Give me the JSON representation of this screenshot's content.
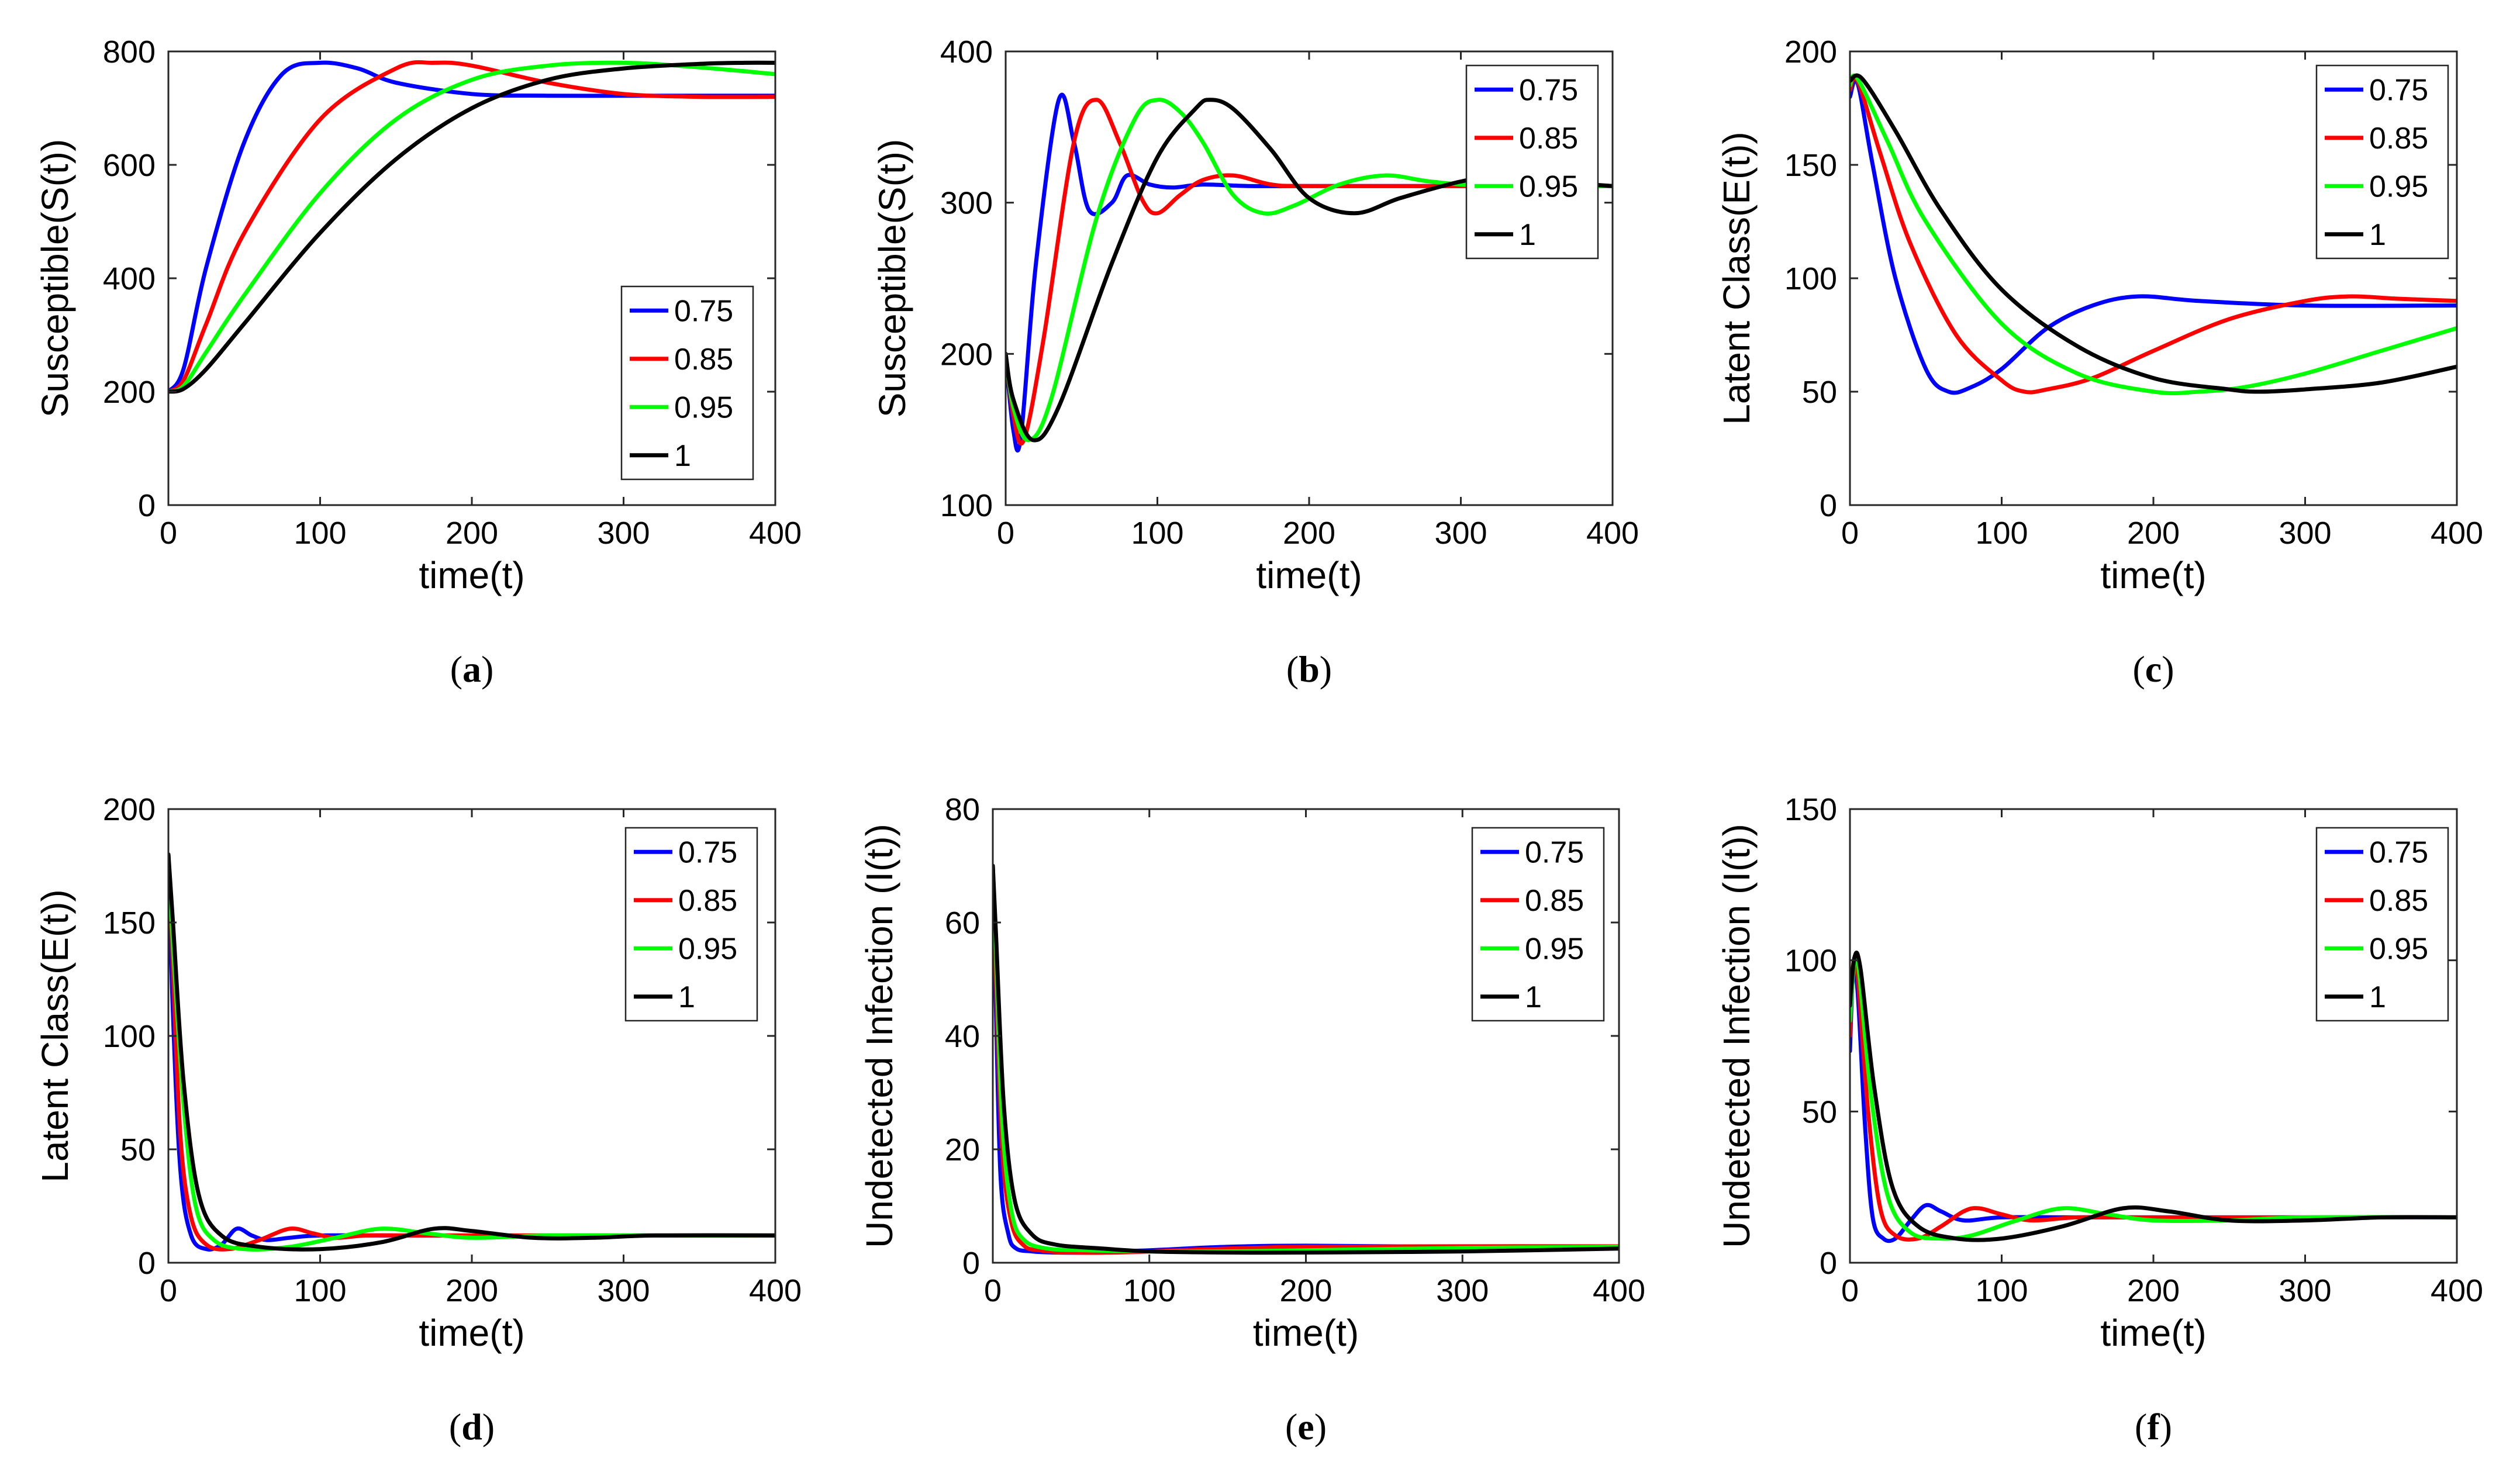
{
  "figure": {
    "legend_labels": [
      "0.75",
      "0.85",
      "0.95",
      "1"
    ],
    "series_colors": [
      "#0000ff",
      "#ff0000",
      "#00ff00",
      "#000000"
    ]
  },
  "chart_data": [
    {
      "id": "a",
      "caption_letter": "a",
      "type": "line",
      "xlabel": "time(t)",
      "ylabel": "Susceptible(S(t))",
      "xlim": [
        0,
        400
      ],
      "ylim": [
        0,
        800
      ],
      "xticks": [
        0,
        100,
        200,
        300,
        400
      ],
      "yticks": [
        0,
        200,
        400,
        600,
        800
      ],
      "legend_position": "lower-right",
      "series": [
        {
          "name": "0.75",
          "color": "#0000ff",
          "x": [
            0,
            10,
            25,
            50,
            75,
            100,
            125,
            150,
            200,
            250,
            300,
            350,
            400
          ],
          "y": [
            200,
            240,
            420,
            640,
            760,
            780,
            770,
            745,
            725,
            722,
            722,
            722,
            722
          ]
        },
        {
          "name": "0.85",
          "color": "#ff0000",
          "x": [
            0,
            10,
            25,
            50,
            100,
            150,
            175,
            200,
            250,
            300,
            350,
            400
          ],
          "y": [
            200,
            220,
            320,
            480,
            680,
            770,
            780,
            775,
            745,
            725,
            720,
            720
          ]
        },
        {
          "name": "0.95",
          "color": "#00ff00",
          "x": [
            0,
            10,
            25,
            50,
            100,
            150,
            200,
            250,
            300,
            350,
            400
          ],
          "y": [
            200,
            210,
            270,
            370,
            550,
            680,
            750,
            775,
            780,
            772,
            760
          ]
        },
        {
          "name": "1",
          "color": "#000000",
          "x": [
            0,
            10,
            25,
            50,
            100,
            150,
            200,
            250,
            300,
            350,
            380,
            400
          ],
          "y": [
            200,
            205,
            240,
            320,
            480,
            610,
            700,
            750,
            770,
            778,
            780,
            780
          ]
        }
      ]
    },
    {
      "id": "b",
      "caption_letter": "b",
      "type": "line",
      "xlabel": "time(t)",
      "ylabel": "Susceptible(S(t))",
      "xlim": [
        0,
        400
      ],
      "ylim": [
        100,
        400
      ],
      "xticks": [
        0,
        100,
        200,
        300,
        400
      ],
      "yticks": [
        100,
        200,
        300,
        400
      ],
      "legend_position": "top-right",
      "series": [
        {
          "name": "0.75",
          "color": "#0000ff",
          "x": [
            0,
            5,
            10,
            20,
            35,
            45,
            55,
            70,
            80,
            95,
            110,
            130,
            160,
            200,
            300,
            400
          ],
          "y": [
            200,
            150,
            145,
            260,
            368,
            340,
            295,
            300,
            318,
            312,
            310,
            312,
            311,
            311,
            311,
            311
          ]
        },
        {
          "name": "0.85",
          "color": "#ff0000",
          "x": [
            0,
            5,
            12,
            25,
            45,
            60,
            75,
            90,
            100,
            115,
            130,
            150,
            175,
            200,
            300,
            400
          ],
          "y": [
            200,
            160,
            143,
            210,
            340,
            368,
            340,
            302,
            293,
            305,
            315,
            318,
            312,
            311,
            311,
            311
          ]
        },
        {
          "name": "0.95",
          "color": "#00ff00",
          "x": [
            0,
            5,
            15,
            30,
            60,
            85,
            100,
            115,
            130,
            150,
            170,
            190,
            220,
            250,
            280,
            320,
            400
          ],
          "y": [
            200,
            165,
            143,
            170,
            290,
            355,
            368,
            360,
            340,
            305,
            293,
            298,
            312,
            318,
            314,
            311,
            311
          ]
        },
        {
          "name": "1",
          "color": "#000000",
          "x": [
            0,
            5,
            18,
            35,
            70,
            100,
            125,
            135,
            150,
            175,
            200,
            230,
            260,
            300,
            330,
            360,
            400
          ],
          "y": [
            200,
            170,
            143,
            165,
            260,
            330,
            362,
            368,
            362,
            335,
            303,
            293,
            303,
            314,
            318,
            314,
            311
          ]
        }
      ]
    },
    {
      "id": "c",
      "caption_letter": "c",
      "type": "line",
      "xlabel": "time(t)",
      "ylabel": "Latent Class(E(t))",
      "xlim": [
        0,
        400
      ],
      "ylim": [
        0,
        200
      ],
      "xticks": [
        0,
        100,
        200,
        300,
        400
      ],
      "yticks": [
        0,
        50,
        100,
        150,
        200
      ],
      "legend_position": "top-right",
      "series": [
        {
          "name": "0.75",
          "color": "#0000ff",
          "x": [
            0,
            5,
            15,
            30,
            50,
            65,
            80,
            100,
            130,
            160,
            190,
            230,
            300,
            400
          ],
          "y": [
            180,
            186,
            150,
            100,
            60,
            50,
            52,
            60,
            78,
            88,
            92,
            90,
            88,
            88
          ]
        },
        {
          "name": "0.85",
          "color": "#ff0000",
          "x": [
            0,
            5,
            20,
            40,
            70,
            100,
            115,
            130,
            160,
            200,
            250,
            300,
            330,
            360,
            400
          ],
          "y": [
            183,
            187,
            155,
            115,
            75,
            55,
            50,
            51,
            56,
            68,
            82,
            90,
            92,
            91,
            90
          ]
        },
        {
          "name": "0.95",
          "color": "#00ff00",
          "x": [
            0,
            5,
            25,
            50,
            100,
            150,
            200,
            230,
            260,
            300,
            350,
            400
          ],
          "y": [
            185,
            188,
            160,
            125,
            80,
            58,
            50,
            50,
            52,
            58,
            68,
            78
          ]
        },
        {
          "name": "1",
          "color": "#000000",
          "x": [
            0,
            8,
            30,
            60,
            100,
            150,
            200,
            250,
            270,
            300,
            350,
            400
          ],
          "y": [
            187,
            188,
            165,
            130,
            95,
            70,
            56,
            51,
            50,
            51,
            54,
            61
          ]
        }
      ]
    },
    {
      "id": "d",
      "caption_letter": "d",
      "type": "line",
      "xlabel": "time(t)",
      "ylabel": "Latent Class(E(t))",
      "xlim": [
        0,
        400
      ],
      "ylim": [
        0,
        200
      ],
      "xticks": [
        0,
        100,
        200,
        300,
        400
      ],
      "yticks": [
        0,
        50,
        100,
        150,
        200
      ],
      "legend_position": "top-right",
      "series": [
        {
          "name": "0.75",
          "color": "#0000ff",
          "x": [
            0,
            3,
            8,
            15,
            25,
            35,
            45,
            55,
            65,
            80,
            100,
            150,
            200,
            300,
            400
          ],
          "y": [
            180,
            110,
            40,
            12,
            6,
            8,
            15,
            12,
            10,
            11,
            12,
            12,
            12,
            12,
            12
          ]
        },
        {
          "name": "0.85",
          "color": "#ff0000",
          "x": [
            0,
            3,
            8,
            15,
            25,
            40,
            60,
            80,
            95,
            110,
            130,
            160,
            200,
            300,
            400
          ],
          "y": [
            180,
            130,
            55,
            20,
            8,
            6,
            10,
            15,
            13,
            11,
            12,
            12,
            12,
            12,
            12
          ]
        },
        {
          "name": "0.95",
          "color": "#00ff00",
          "x": [
            0,
            3,
            10,
            18,
            30,
            50,
            80,
            110,
            140,
            170,
            200,
            250,
            300,
            400
          ],
          "y": [
            180,
            140,
            70,
            25,
            10,
            6,
            7,
            11,
            15,
            13,
            11,
            12,
            12,
            12
          ]
        },
        {
          "name": "1",
          "color": "#000000",
          "x": [
            0,
            3,
            10,
            20,
            35,
            60,
            100,
            140,
            175,
            200,
            240,
            280,
            320,
            400
          ],
          "y": [
            180,
            150,
            80,
            30,
            12,
            7,
            6,
            9,
            15,
            14,
            11,
            11,
            12,
            12
          ]
        }
      ]
    },
    {
      "id": "e",
      "caption_letter": "e",
      "type": "line",
      "xlabel": "time(t)",
      "ylabel": "Undetected Infection (I(t))",
      "xlim": [
        0,
        400
      ],
      "ylim": [
        0,
        80
      ],
      "xticks": [
        0,
        100,
        200,
        300,
        400
      ],
      "yticks": [
        0,
        20,
        40,
        60,
        80
      ],
      "legend_position": "top-right",
      "series": [
        {
          "name": "0.75",
          "color": "#0000ff",
          "x": [
            0,
            2,
            5,
            10,
            15,
            25,
            40,
            60,
            100,
            150,
            200,
            300,
            400
          ],
          "y": [
            70,
            45,
            15,
            5,
            2.5,
            2,
            1.8,
            1.8,
            2.2,
            2.8,
            3,
            2.8,
            2.8
          ]
        },
        {
          "name": "0.85",
          "color": "#ff0000",
          "x": [
            0,
            2,
            6,
            12,
            20,
            30,
            50,
            80,
            100,
            150,
            200,
            300,
            400
          ],
          "y": [
            70,
            50,
            20,
            7,
            3,
            2.2,
            1.8,
            1.8,
            2,
            2.5,
            2.8,
            2.9,
            2.9
          ]
        },
        {
          "name": "0.95",
          "color": "#00ff00",
          "x": [
            0,
            2,
            6,
            12,
            20,
            35,
            60,
            100,
            150,
            200,
            300,
            400
          ],
          "y": [
            70,
            55,
            25,
            9,
            4,
            2.5,
            2.2,
            2,
            2,
            2.2,
            2.6,
            2.8
          ]
        },
        {
          "name": "1",
          "color": "#000000",
          "x": [
            0,
            2,
            7,
            14,
            25,
            40,
            70,
            100,
            150,
            200,
            300,
            400
          ],
          "y": [
            70,
            58,
            28,
            11,
            5,
            3.2,
            2.5,
            2,
            1.8,
            1.8,
            2,
            2.5
          ]
        }
      ]
    },
    {
      "id": "f",
      "caption_letter": "f",
      "type": "line",
      "xlabel": "time(t)",
      "ylabel": "Undetected Infection (I(t))",
      "xlim": [
        0,
        400
      ],
      "ylim": [
        0,
        150
      ],
      "xticks": [
        0,
        100,
        200,
        300,
        400
      ],
      "yticks": [
        0,
        50,
        100,
        150
      ],
      "legend_position": "top-right",
      "series": [
        {
          "name": "0.75",
          "color": "#0000ff",
          "x": [
            0,
            2,
            5,
            10,
            15,
            22,
            30,
            40,
            50,
            60,
            75,
            100,
            150,
            200,
            300,
            400
          ],
          "y": [
            70,
            95,
            90,
            45,
            15,
            8,
            8,
            14,
            19,
            17,
            14,
            15,
            15,
            15,
            15,
            15
          ]
        },
        {
          "name": "0.85",
          "color": "#ff0000",
          "x": [
            0,
            2,
            5,
            12,
            20,
            30,
            45,
            60,
            75,
            85,
            100,
            120,
            150,
            200,
            300,
            400
          ],
          "y": [
            75,
            98,
            95,
            50,
            18,
            9,
            8,
            12,
            17,
            18,
            16,
            14,
            15,
            15,
            15,
            15
          ]
        },
        {
          "name": "0.95",
          "color": "#00ff00",
          "x": [
            0,
            3,
            6,
            14,
            25,
            40,
            60,
            80,
            110,
            140,
            170,
            200,
            250,
            300,
            400
          ],
          "y": [
            80,
            100,
            96,
            55,
            22,
            10,
            8,
            9,
            14,
            18,
            16,
            14,
            14,
            15,
            15
          ]
        },
        {
          "name": "1",
          "color": "#000000",
          "x": [
            0,
            3,
            7,
            16,
            28,
            45,
            70,
            100,
            140,
            180,
            210,
            250,
            300,
            350,
            400
          ],
          "y": [
            85,
            101,
            97,
            58,
            25,
            12,
            8,
            8,
            12,
            18,
            17,
            14,
            14,
            15,
            15
          ]
        }
      ]
    }
  ]
}
